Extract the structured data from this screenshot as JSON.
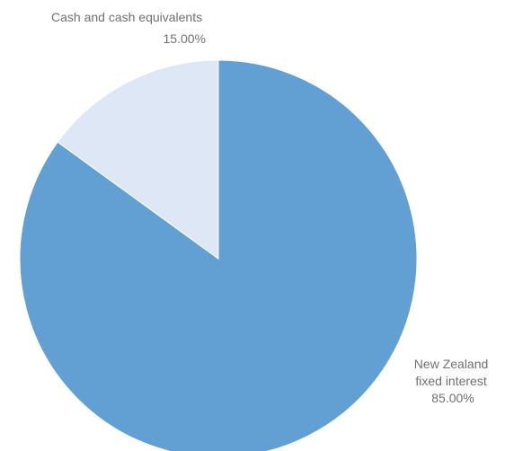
{
  "chart_data": {
    "type": "pie",
    "start_angle_deg": 0,
    "direction": "clockwise",
    "slices": [
      {
        "label_lines": [
          "New Zealand",
          "fixed interest"
        ],
        "value_label": "85.00%",
        "value": 85.0,
        "color": "#62a0d3"
      },
      {
        "label_lines": [
          "Cash and cash equivalents"
        ],
        "value_label": "15.00%",
        "value": 15.0,
        "color": "#dde7f5"
      }
    ]
  }
}
